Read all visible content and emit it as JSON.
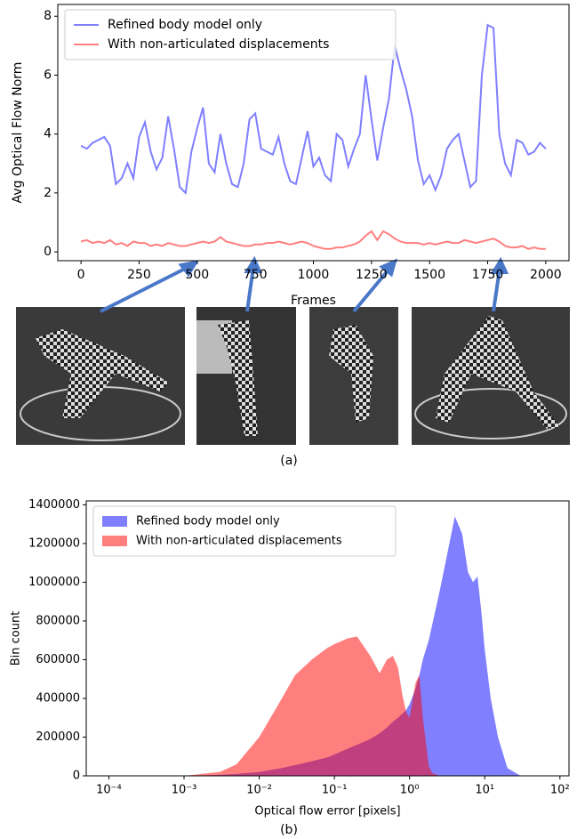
{
  "chart_data": [
    {
      "type": "line",
      "x_label": "Frames",
      "y_label": "Avg Optical Flow Norm",
      "x": [
        0,
        25,
        50,
        75,
        100,
        125,
        150,
        175,
        200,
        225,
        250,
        275,
        300,
        325,
        350,
        375,
        400,
        425,
        450,
        475,
        500,
        525,
        550,
        575,
        600,
        625,
        650,
        675,
        700,
        725,
        750,
        775,
        800,
        825,
        850,
        875,
        900,
        925,
        950,
        975,
        1000,
        1025,
        1050,
        1075,
        1100,
        1125,
        1150,
        1175,
        1200,
        1225,
        1250,
        1275,
        1300,
        1325,
        1350,
        1375,
        1400,
        1425,
        1450,
        1475,
        1500,
        1525,
        1550,
        1575,
        1600,
        1625,
        1650,
        1675,
        1700,
        1725,
        1750,
        1775,
        1800,
        1825,
        1850,
        1875,
        1900,
        1925,
        1950,
        1975,
        2000
      ],
      "series": [
        {
          "name": "Refined body model only",
          "color": "#0000ff",
          "values": [
            3.6,
            3.5,
            3.7,
            3.8,
            3.9,
            3.6,
            2.3,
            2.5,
            3.0,
            2.5,
            3.9,
            4.4,
            3.4,
            2.8,
            3.2,
            4.6,
            3.5,
            2.2,
            2.0,
            3.4,
            4.2,
            4.9,
            3.0,
            2.7,
            4.0,
            3.0,
            2.3,
            2.2,
            3.0,
            4.5,
            4.7,
            3.5,
            3.4,
            3.3,
            3.9,
            3.0,
            2.4,
            2.3,
            3.2,
            4.1,
            2.9,
            3.2,
            2.6,
            2.4,
            4.0,
            3.8,
            2.9,
            3.5,
            4.0,
            6.0,
            4.5,
            3.1,
            4.2,
            5.2,
            7.0,
            6.2,
            5.5,
            4.6,
            3.1,
            2.3,
            2.6,
            2.1,
            2.6,
            3.5,
            3.8,
            4.0,
            3.1,
            2.2,
            2.4,
            6.0,
            7.7,
            7.6,
            4.0,
            3.0,
            2.6,
            3.8,
            3.7,
            3.3,
            3.4,
            3.7,
            3.5
          ]
        },
        {
          "name": "With non-articulated displacements",
          "color": "#ff0000",
          "values": [
            0.35,
            0.4,
            0.3,
            0.35,
            0.3,
            0.4,
            0.25,
            0.3,
            0.2,
            0.35,
            0.3,
            0.3,
            0.2,
            0.25,
            0.2,
            0.3,
            0.25,
            0.2,
            0.2,
            0.25,
            0.3,
            0.35,
            0.3,
            0.35,
            0.5,
            0.35,
            0.3,
            0.25,
            0.2,
            0.2,
            0.25,
            0.25,
            0.3,
            0.3,
            0.35,
            0.3,
            0.25,
            0.3,
            0.35,
            0.3,
            0.2,
            0.15,
            0.1,
            0.1,
            0.15,
            0.15,
            0.2,
            0.25,
            0.35,
            0.55,
            0.7,
            0.4,
            0.7,
            0.6,
            0.45,
            0.35,
            0.3,
            0.3,
            0.3,
            0.25,
            0.3,
            0.25,
            0.3,
            0.35,
            0.3,
            0.3,
            0.4,
            0.35,
            0.3,
            0.35,
            0.4,
            0.45,
            0.35,
            0.2,
            0.15,
            0.15,
            0.2,
            0.1,
            0.15,
            0.1,
            0.1
          ]
        }
      ],
      "alpha": 0.5,
      "xlim": [
        -100,
        2100
      ],
      "ylim": [
        -0.3,
        8.4
      ],
      "xticks": [
        0,
        250,
        500,
        750,
        1000,
        1250,
        1500,
        1750,
        2000
      ],
      "yticks": [
        0,
        2,
        4,
        6,
        8
      ],
      "legend": "upper left"
    },
    {
      "type": "area",
      "x_label": "Optical flow error [pixels]",
      "y_label": "Bin count",
      "log_x": true,
      "x": [
        0.001,
        0.003,
        0.005,
        0.01,
        0.02,
        0.03,
        0.05,
        0.08,
        0.1,
        0.15,
        0.2,
        0.3,
        0.4,
        0.5,
        0.6,
        0.7,
        0.8,
        0.9,
        1,
        1.2,
        1.35,
        1.5,
        1.8,
        2,
        2.5,
        3,
        4,
        5,
        6,
        7,
        8,
        9,
        10,
        12,
        15,
        20,
        30
      ],
      "series": [
        {
          "name": "Refined body model only",
          "color": "#0000ff",
          "values": [
            0,
            5000,
            10000,
            20000,
            40000,
            55000,
            75000,
            95000,
            110000,
            140000,
            160000,
            190000,
            220000,
            250000,
            280000,
            300000,
            320000,
            340000,
            370000,
            450000,
            520000,
            600000,
            700000,
            780000,
            950000,
            1100000,
            1340000,
            1250000,
            1050000,
            1000000,
            1030000,
            850000,
            650000,
            400000,
            200000,
            40000,
            0
          ]
        },
        {
          "name": "With non-articulated displacements",
          "color": "#ff0000",
          "values": [
            0,
            20000,
            60000,
            200000,
            400000,
            520000,
            600000,
            660000,
            680000,
            710000,
            720000,
            620000,
            530000,
            600000,
            620000,
            560000,
            420000,
            330000,
            300000,
            480000,
            520000,
            300000,
            50000,
            15000,
            0,
            0,
            0,
            0,
            0,
            0,
            0,
            0,
            0,
            0,
            0,
            0,
            0
          ]
        }
      ],
      "alpha": 0.5,
      "xlim": [
        5e-05,
        132
      ],
      "ylim": [
        0,
        1420000
      ],
      "xticks": [
        {
          "value": 0.0001,
          "label": "10⁻⁴"
        },
        {
          "value": 0.001,
          "label": "10⁻³"
        },
        {
          "value": 0.01,
          "label": "10⁻²"
        },
        {
          "value": 0.1,
          "label": "10⁻¹"
        },
        {
          "value": 1,
          "label": "10⁰"
        },
        {
          "value": 10,
          "label": "10¹"
        },
        {
          "value": 100,
          "label": "10²"
        }
      ],
      "yticks": [
        0,
        200000,
        400000,
        600000,
        800000,
        1000000,
        1200000,
        1400000
      ],
      "legend": "upper left"
    }
  ],
  "captions": [
    "(a)",
    "(b)"
  ]
}
